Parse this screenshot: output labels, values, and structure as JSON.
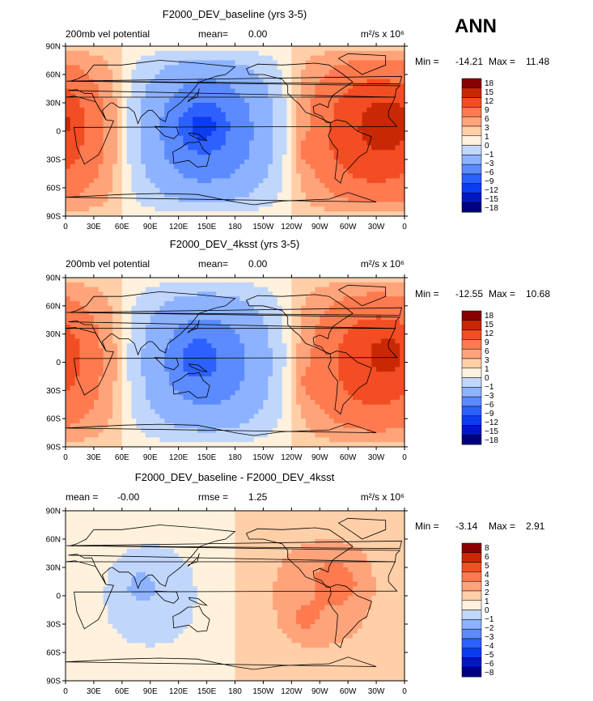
{
  "season": "ANN",
  "palette": [
    "#000080",
    "#0016c8",
    "#0b3cf0",
    "#2c60ff",
    "#5b8bff",
    "#8db2ff",
    "#c0d6fb",
    "#fff1dc",
    "#ffcfa8",
    "#ffa47a",
    "#ff7a4e",
    "#f34d24",
    "#c92804",
    "#8a0000"
  ],
  "coast_color": "#000000",
  "chart_data": [
    {
      "type": "heatmap",
      "title": "F2000_DEV_baseline (yrs 3-5)",
      "left_label": "200mb vel potential",
      "mid_label": "mean=",
      "mid_value": "0.00",
      "units": "m²/s x 10⁶",
      "stats": {
        "min_label": "Min =",
        "min": "-14.21",
        "max_label": "Max =",
        "max": "11.48"
      },
      "levels": [
        "18",
        "15",
        "12",
        "9",
        "6",
        "3",
        "1",
        "0",
        "−1",
        "−3",
        "−6",
        "−9",
        "−12",
        "−15",
        "−18"
      ],
      "lat_ticks": [
        "90N",
        "60N",
        "30N",
        "0",
        "30S",
        "60S",
        "90S"
      ],
      "lon_ticks": [
        "0",
        "30E",
        "60E",
        "90E",
        "120E",
        "150E",
        "180",
        "150W",
        "120W",
        "90W",
        "60W",
        "30W",
        "0"
      ],
      "field": {
        "w1": 9,
        "w2": 0,
        "lon1": 150,
        "lon2": 0,
        "sigma": 38,
        "extra": [
          {
            "lon": 145,
            "lat": 5,
            "amp": -5,
            "s": 20
          },
          {
            "lon": 345,
            "lat": 10,
            "amp": 3,
            "s": 24
          },
          {
            "lon": 260,
            "lat": -20,
            "amp": 2,
            "s": 16
          }
        ],
        "bias": 0
      }
    },
    {
      "type": "heatmap",
      "title": "F2000_DEV_4ksst (yrs 3-5)",
      "left_label": "200mb vel potential",
      "mid_label": "mean=",
      "mid_value": "0.00",
      "units": "m²/s x 10⁶",
      "stats": {
        "min_label": "Min =",
        "min": "-12.55",
        "max_label": "Max =",
        "max": "10.68"
      },
      "levels": [
        "18",
        "15",
        "12",
        "9",
        "6",
        "3",
        "1",
        "0",
        "−1",
        "−3",
        "−6",
        "−9",
        "−12",
        "−15",
        "−18"
      ],
      "lat_ticks": [
        "90N",
        "60N",
        "30N",
        "0",
        "30S",
        "60S",
        "90S"
      ],
      "lon_ticks": [
        "0",
        "30E",
        "60E",
        "90E",
        "120E",
        "150E",
        "180",
        "150W",
        "120W",
        "90W",
        "60W",
        "30W",
        "0"
      ],
      "field": {
        "w1": 8,
        "w2": 0,
        "lon1": 150,
        "lon2": 0,
        "sigma": 40,
        "extra": [
          {
            "lon": 140,
            "lat": 5,
            "amp": -4,
            "s": 20
          },
          {
            "lon": 345,
            "lat": 10,
            "amp": 2.5,
            "s": 24
          },
          {
            "lon": 260,
            "lat": -22,
            "amp": 2,
            "s": 16
          }
        ],
        "bias": 0
      }
    },
    {
      "type": "heatmap",
      "title": "F2000_DEV_baseline - F2000_DEV_4ksst",
      "left_label": "mean =",
      "left_value": "-0.00",
      "mid_label": "rmse =",
      "mid_value": "1.25",
      "units": "m²/s x 10⁶",
      "stats": {
        "min_label": "Min =",
        "min": "-3.14",
        "max_label": "Max =",
        "max": "2.91"
      },
      "levels": [
        "8",
        "6",
        "5",
        "4",
        "3",
        "2",
        "1",
        "0",
        "−1",
        "−2",
        "−3",
        "−4",
        "−5",
        "−6",
        "−8"
      ],
      "lat_ticks": [
        "90N",
        "60N",
        "30N",
        "0",
        "30S",
        "60S",
        "90S"
      ],
      "lon_ticks": [
        "0",
        "30E",
        "60E",
        "90E",
        "120E",
        "150E",
        "180",
        "150W",
        "120W",
        "90W",
        "60W",
        "30W",
        "0"
      ],
      "field": {
        "w1": 1.5,
        "w2": 0,
        "lon1": 90,
        "lon2": 0,
        "sigma": 55,
        "extra": [
          {
            "lon": 80,
            "lat": 10,
            "amp": -1.2,
            "s": 16
          },
          {
            "lon": 290,
            "lat": 15,
            "amp": 1.2,
            "s": 30
          },
          {
            "lon": 255,
            "lat": -25,
            "amp": 1.0,
            "s": 16
          }
        ],
        "bias": 0
      }
    }
  ]
}
